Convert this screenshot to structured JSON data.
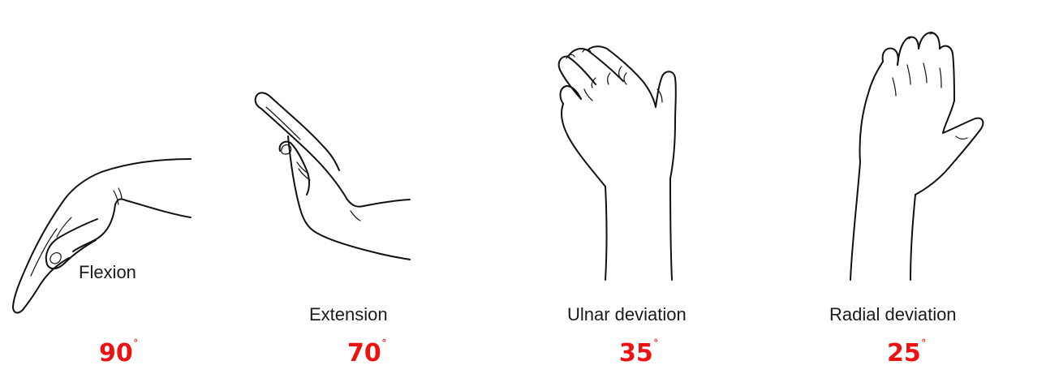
{
  "items": [
    {
      "label": "Flexion",
      "angle": "90",
      "unit": "˚"
    },
    {
      "label": "Extension",
      "angle": "70",
      "unit": "˚"
    },
    {
      "label": "Ulnar deviation",
      "angle": "35",
      "unit": "˚"
    },
    {
      "label": "Radial deviation",
      "angle": "25",
      "unit": "˚"
    }
  ],
  "colors": {
    "angle": "#ee1111",
    "line": "#111111"
  }
}
